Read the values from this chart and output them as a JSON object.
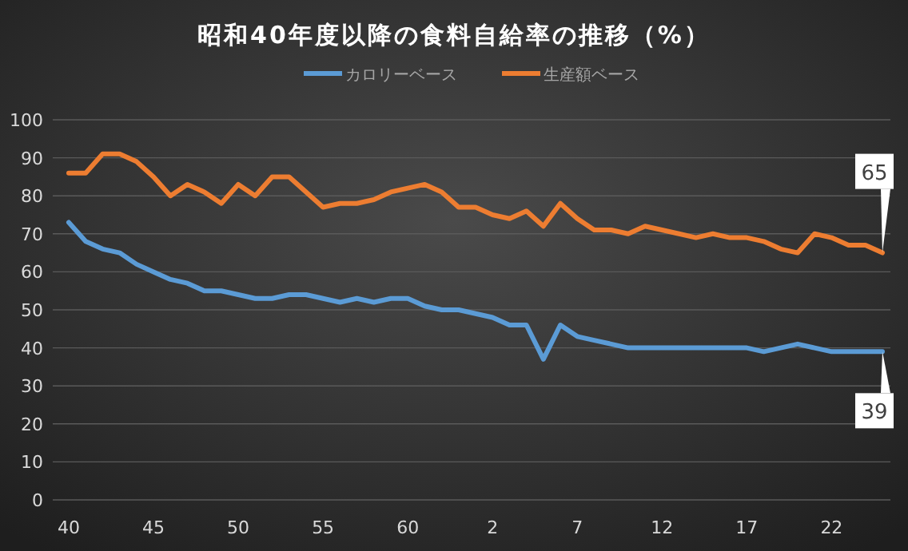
{
  "chart_data": {
    "type": "line",
    "title": "昭和40年度以降の食料自給率の推移（%）",
    "categories": [
      "40",
      null,
      null,
      null,
      null,
      "45",
      null,
      null,
      null,
      null,
      "50",
      null,
      null,
      null,
      null,
      "55",
      null,
      null,
      null,
      null,
      "60",
      null,
      null,
      null,
      null,
      "2",
      null,
      null,
      null,
      null,
      "7",
      null,
      null,
      null,
      null,
      "12",
      null,
      null,
      null,
      null,
      "17",
      null,
      null,
      null,
      null,
      "22",
      null,
      null,
      null
    ],
    "series": [
      {
        "name": "カロリーベース",
        "color": "#5b9bd5",
        "values": [
          73,
          68,
          66,
          65,
          62,
          60,
          58,
          57,
          55,
          55,
          54,
          53,
          53,
          54,
          54,
          53,
          52,
          53,
          52,
          53,
          53,
          51,
          50,
          50,
          49,
          48,
          46,
          46,
          37,
          46,
          43,
          42,
          41,
          40,
          40,
          40,
          40,
          40,
          40,
          40,
          40,
          39,
          40,
          41,
          40,
          39,
          39,
          39,
          39
        ]
      },
      {
        "name": "生産額ベース",
        "color": "#ed7d31",
        "values": [
          86,
          86,
          91,
          91,
          89,
          85,
          80,
          83,
          81,
          78,
          83,
          80,
          85,
          85,
          81,
          77,
          78,
          78,
          79,
          81,
          82,
          83,
          81,
          77,
          77,
          75,
          74,
          76,
          72,
          78,
          74,
          71,
          71,
          70,
          72,
          71,
          70,
          69,
          70,
          69,
          69,
          68,
          66,
          65,
          70,
          69,
          67,
          67,
          65
        ]
      }
    ],
    "ylim": [
      0,
      100
    ],
    "yticks": [
      0,
      10,
      20,
      30,
      40,
      50,
      60,
      70,
      80,
      90,
      100
    ],
    "grid": "y",
    "legend": "top",
    "marker": "none",
    "line_style": "solid",
    "annotations": [
      {
        "text": "65",
        "y": 65
      },
      {
        "text": "39",
        "y": 39
      }
    ]
  }
}
